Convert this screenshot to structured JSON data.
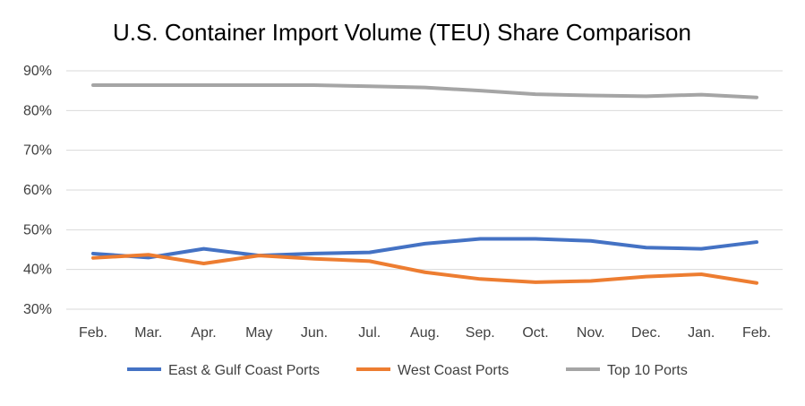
{
  "chart_data": {
    "type": "line",
    "title": "U.S. Container Import Volume (TEU) Share Comparison",
    "xlabel": "",
    "ylabel": "",
    "categories": [
      "Feb.",
      "Mar.",
      "Apr.",
      "May",
      "Jun.",
      "Jul.",
      "Aug.",
      "Sep.",
      "Oct.",
      "Nov.",
      "Dec.",
      "Jan.",
      "Feb."
    ],
    "ylim": [
      0.3,
      0.9
    ],
    "yticks": [
      0.3,
      0.4,
      0.5,
      0.6,
      0.7,
      0.8,
      0.9
    ],
    "ytick_labels": [
      "30%",
      "40%",
      "50%",
      "60%",
      "70%",
      "80%",
      "90%"
    ],
    "grid": "horizontal",
    "legend_position": "bottom",
    "series": [
      {
        "name": "East & Gulf Coast Ports",
        "color": "#4472C4",
        "values": [
          0.44,
          0.43,
          0.452,
          0.435,
          0.44,
          0.443,
          0.465,
          0.477,
          0.477,
          0.472,
          0.455,
          0.452,
          0.469
        ]
      },
      {
        "name": "West Coast Ports",
        "color": "#ED7D31",
        "values": [
          0.429,
          0.437,
          0.415,
          0.435,
          0.427,
          0.421,
          0.393,
          0.376,
          0.368,
          0.371,
          0.382,
          0.388,
          0.366
        ]
      },
      {
        "name": "Top 10 Ports",
        "color": "#A5A5A5",
        "values": [
          0.864,
          0.864,
          0.864,
          0.864,
          0.864,
          0.861,
          0.858,
          0.85,
          0.841,
          0.838,
          0.836,
          0.84,
          0.833
        ]
      }
    ]
  }
}
